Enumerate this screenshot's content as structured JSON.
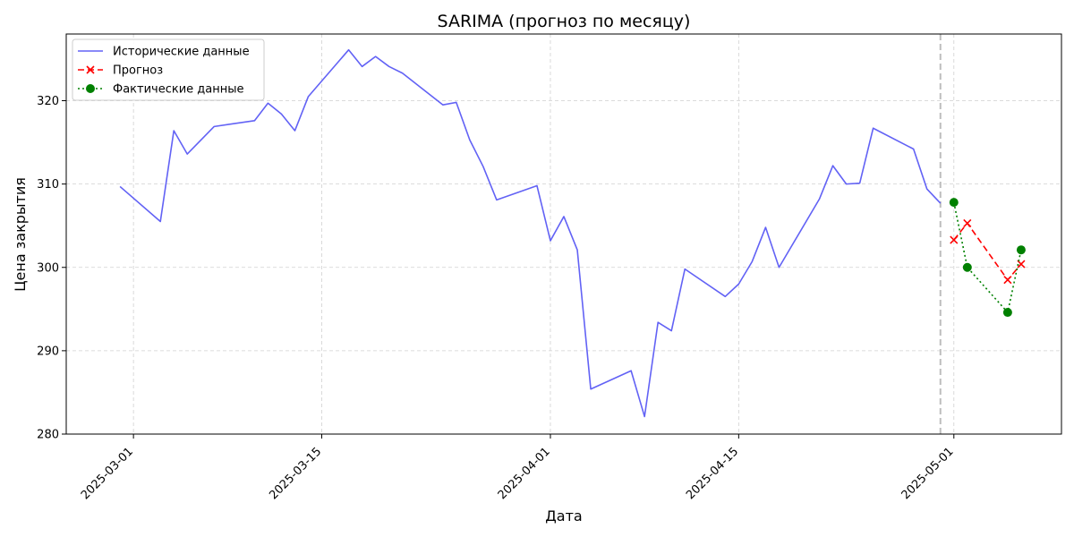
{
  "chart_data": {
    "type": "line",
    "title": "SARIMA (прогноз по месяцу)",
    "xlabel": "Дата",
    "ylabel": "Цена закрытия",
    "xlim": [
      "2025-02-24",
      "2025-05-09"
    ],
    "ylim": [
      280,
      328
    ],
    "x_ticks": [
      "2025-03-01",
      "2025-03-15",
      "2025-04-01",
      "2025-04-15",
      "2025-05-01"
    ],
    "y_ticks": [
      280,
      290,
      300,
      310,
      320
    ],
    "grid": true,
    "legend_position": "top-left",
    "vline": {
      "x": "2025-04-30",
      "color": "#bdbdbd",
      "style": "dashed"
    },
    "series": [
      {
        "name": "Исторические данные",
        "color": "#6262f5",
        "style": "solid",
        "marker": "none",
        "points": [
          [
            "2025-02-28",
            309.7
          ],
          [
            "2025-03-03",
            305.5
          ],
          [
            "2025-03-04",
            316.4
          ],
          [
            "2025-03-05",
            313.6
          ],
          [
            "2025-03-07",
            316.9
          ],
          [
            "2025-03-10",
            317.6
          ],
          [
            "2025-03-11",
            319.7
          ],
          [
            "2025-03-12",
            318.4
          ],
          [
            "2025-03-13",
            316.4
          ],
          [
            "2025-03-14",
            320.5
          ],
          [
            "2025-03-17",
            326.1
          ],
          [
            "2025-03-18",
            324.1
          ],
          [
            "2025-03-19",
            325.3
          ],
          [
            "2025-03-20",
            324.1
          ],
          [
            "2025-03-21",
            323.3
          ],
          [
            "2025-03-24",
            319.5
          ],
          [
            "2025-03-25",
            319.8
          ],
          [
            "2025-03-26",
            315.3
          ],
          [
            "2025-03-27",
            312.1
          ],
          [
            "2025-03-28",
            308.1
          ],
          [
            "2025-03-31",
            309.8
          ],
          [
            "2025-04-01",
            303.2
          ],
          [
            "2025-04-02",
            306.1
          ],
          [
            "2025-04-03",
            302.1
          ],
          [
            "2025-04-04",
            285.4
          ],
          [
            "2025-04-07",
            287.6
          ],
          [
            "2025-04-08",
            282.1
          ],
          [
            "2025-04-09",
            293.4
          ],
          [
            "2025-04-10",
            292.4
          ],
          [
            "2025-04-11",
            299.8
          ],
          [
            "2025-04-14",
            296.5
          ],
          [
            "2025-04-15",
            298.0
          ],
          [
            "2025-04-16",
            300.7
          ],
          [
            "2025-04-17",
            304.8
          ],
          [
            "2025-04-18",
            300.0
          ],
          [
            "2025-04-21",
            308.2
          ],
          [
            "2025-04-22",
            312.2
          ],
          [
            "2025-04-23",
            310.0
          ],
          [
            "2025-04-24",
            310.1
          ],
          [
            "2025-04-25",
            316.7
          ],
          [
            "2025-04-28",
            314.2
          ],
          [
            "2025-04-29",
            309.4
          ],
          [
            "2025-04-30",
            307.7
          ]
        ]
      },
      {
        "name": "Прогноз",
        "color": "#ff0000",
        "style": "dashed",
        "marker": "x",
        "points": [
          [
            "2025-05-01",
            303.3
          ],
          [
            "2025-05-02",
            305.3
          ],
          [
            "2025-05-05",
            298.5
          ],
          [
            "2025-05-06",
            300.4
          ]
        ]
      },
      {
        "name": "Фактические данные",
        "color": "#008000",
        "style": "dotted",
        "marker": "o",
        "points": [
          [
            "2025-05-01",
            307.8
          ],
          [
            "2025-05-02",
            300.0
          ],
          [
            "2025-05-05",
            294.6
          ],
          [
            "2025-05-06",
            302.1
          ]
        ]
      }
    ]
  }
}
